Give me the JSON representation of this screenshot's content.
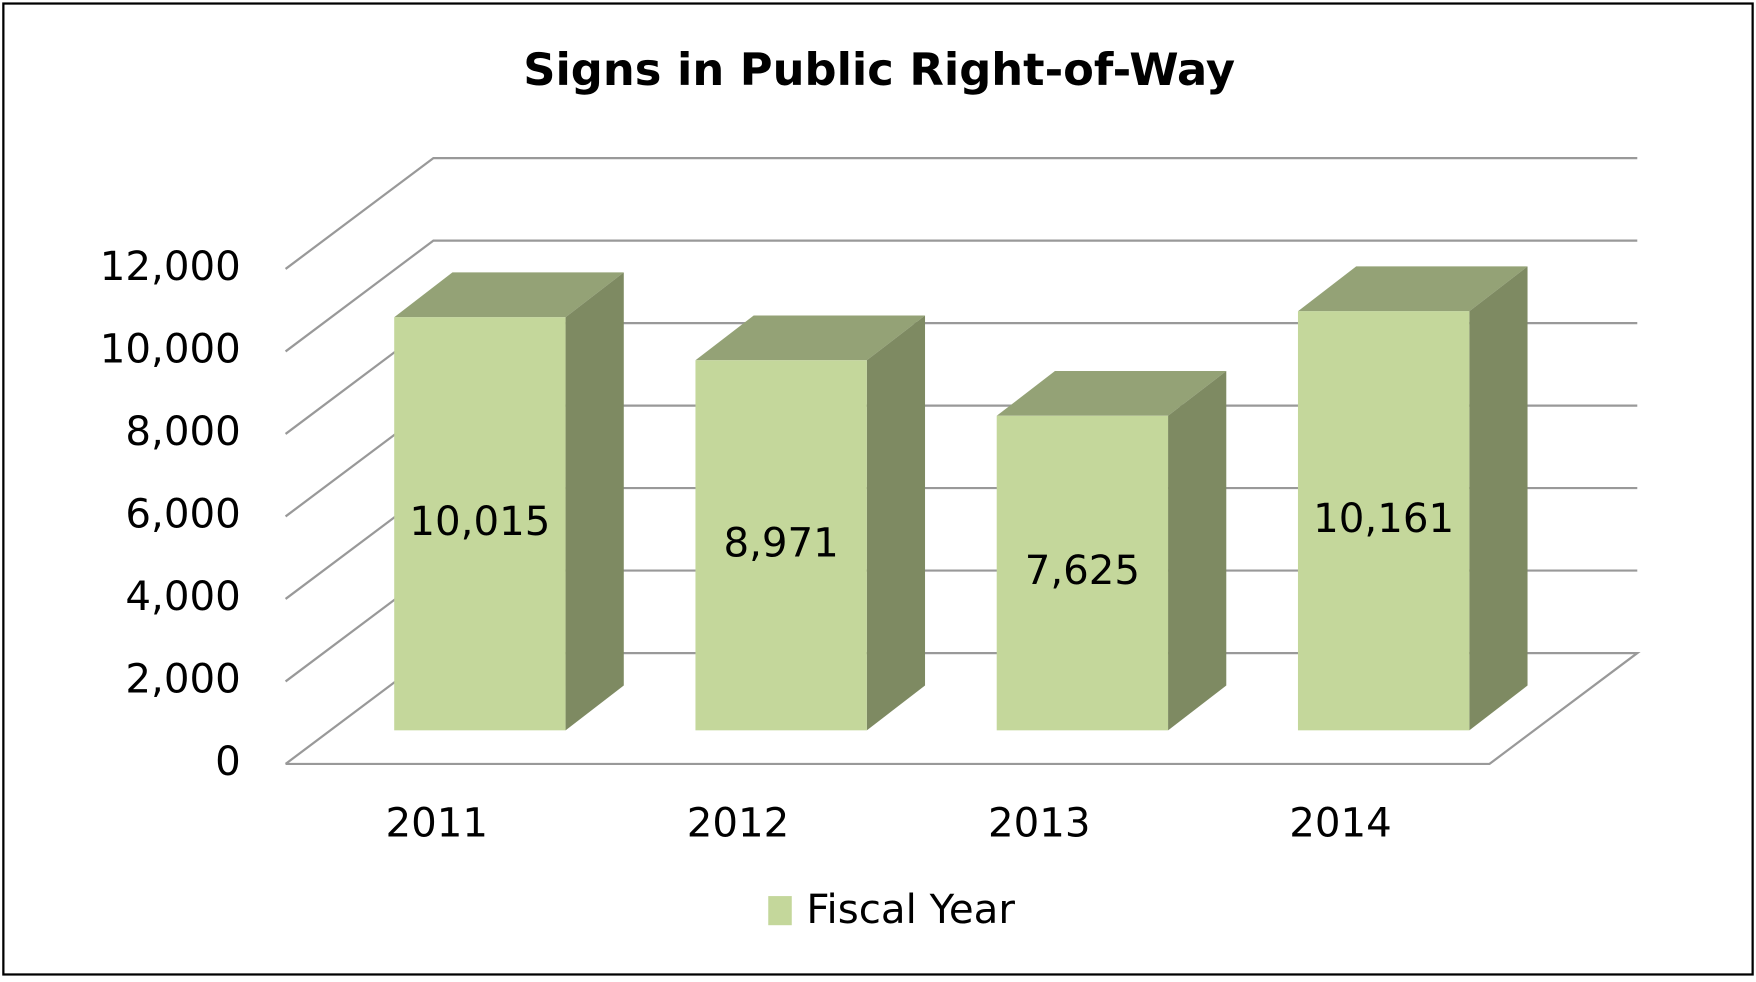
{
  "chart_data": {
    "type": "bar3d",
    "title": "Signs in Public Right-of-Way",
    "categories": [
      "2011",
      "2012",
      "2013",
      "2014"
    ],
    "series": [
      {
        "name": "Fiscal Year",
        "color": "#c4d79b",
        "values": [
          10015,
          8971,
          7625,
          10161
        ],
        "value_labels": [
          "10,015",
          "8,971",
          "7,625",
          "10,161"
        ]
      }
    ],
    "ylim": [
      0,
      12000
    ],
    "yticks": [
      0,
      {
        "value": 2000,
        "label": "2,000"
      },
      {
        "value": 4000,
        "label": "4,000"
      },
      {
        "value": 6000,
        "label": "6,000"
      },
      {
        "value": 8000,
        "label": "8,000"
      },
      {
        "value": 10000,
        "label": "10,000"
      },
      {
        "value": 12000,
        "label": "12,000"
      }
    ],
    "grid": true,
    "legend": "bottom"
  }
}
